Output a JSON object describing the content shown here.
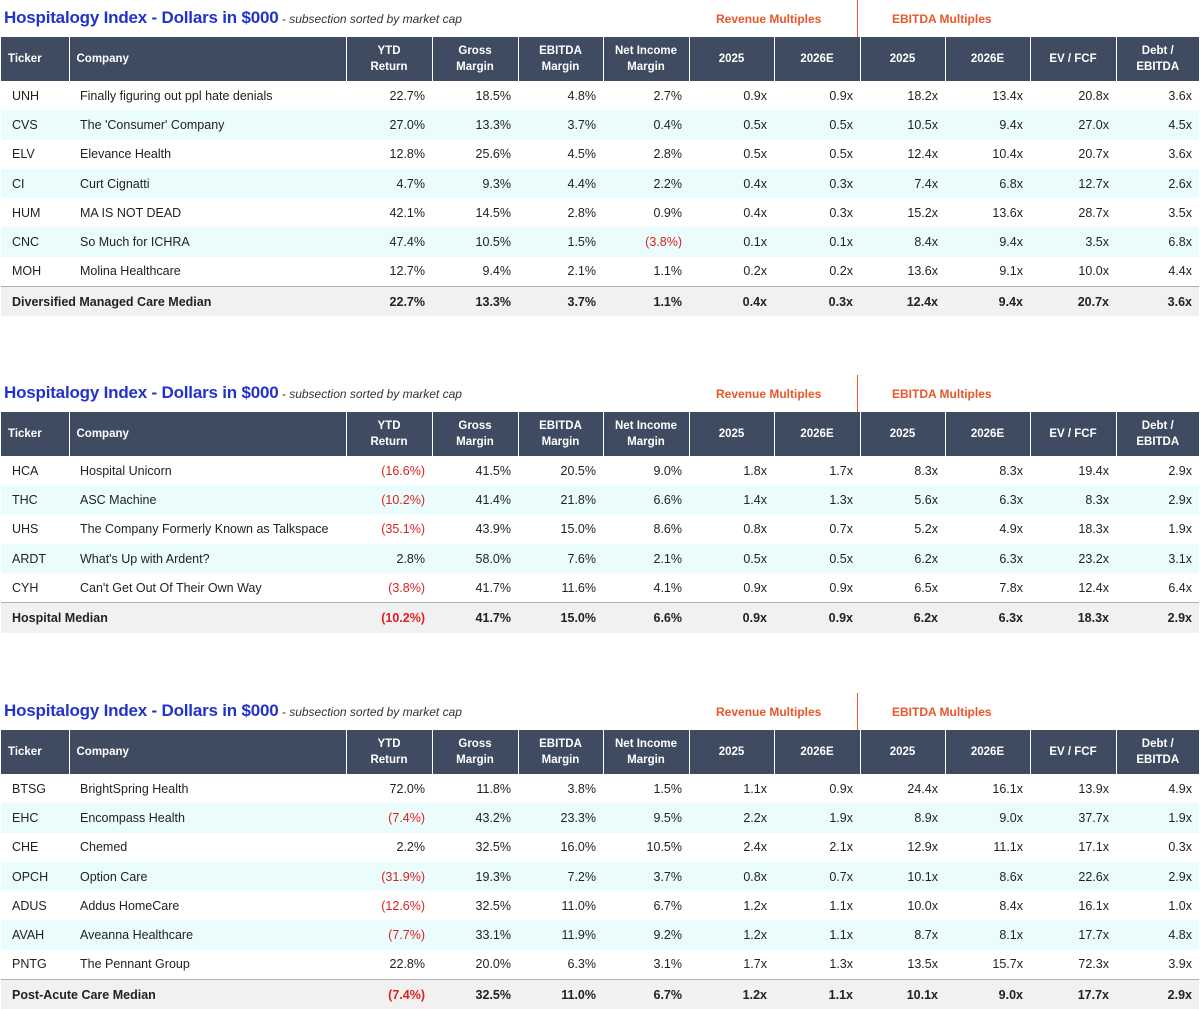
{
  "sections": [
    {
      "title": "Hospitalogy Index - Dollars in $000",
      "subtitle": " - subsection sorted by market cap",
      "revenue_group": "Revenue Multiples",
      "ebitda_group": "EBITDA Multiples",
      "headers": {
        "ticker": "Ticker",
        "company": "Company",
        "ytd_1": "YTD",
        "ytd_2": "Return",
        "gross_1": "Gross",
        "gross_2": "Margin",
        "ebitda_1": "EBITDA",
        "ebitda_2": "Margin",
        "net_1": "Net Income",
        "net_2": "Margin",
        "rev_2025": "2025",
        "rev_2026": "2026E",
        "ebitda_2025": "2025",
        "ebitda_2026": "2026E",
        "ev_fcf": "EV / FCF",
        "debt_ebitda": "Debt / EBITDA"
      },
      "rows": [
        [
          "UNH",
          "Finally figuring out ppl hate denials",
          "22.7%",
          "18.5%",
          "4.8%",
          "2.7%",
          "0.9x",
          "0.9x",
          "18.2x",
          "13.4x",
          "20.8x",
          "3.6x"
        ],
        [
          "CVS",
          "The 'Consumer' Company",
          "27.0%",
          "13.3%",
          "3.7%",
          "0.4%",
          "0.5x",
          "0.5x",
          "10.5x",
          "9.4x",
          "27.0x",
          "4.5x"
        ],
        [
          "ELV",
          "Elevance Health",
          "12.8%",
          "25.6%",
          "4.5%",
          "2.8%",
          "0.5x",
          "0.5x",
          "12.4x",
          "10.4x",
          "20.7x",
          "3.6x"
        ],
        [
          "CI",
          "Curt Cignatti",
          "4.7%",
          "9.3%",
          "4.4%",
          "2.2%",
          "0.4x",
          "0.3x",
          "7.4x",
          "6.8x",
          "12.7x",
          "2.6x"
        ],
        [
          "HUM",
          "MA IS NOT DEAD",
          "42.1%",
          "14.5%",
          "2.8%",
          "0.9%",
          "0.4x",
          "0.3x",
          "15.2x",
          "13.6x",
          "28.7x",
          "3.5x"
        ],
        [
          "CNC",
          "So Much for ICHRA",
          "47.4%",
          "10.5%",
          "1.5%",
          "(3.8%)",
          "0.1x",
          "0.1x",
          "8.4x",
          "9.4x",
          "3.5x",
          "6.8x"
        ],
        [
          "MOH",
          "Molina Healthcare",
          "12.7%",
          "9.4%",
          "2.1%",
          "1.1%",
          "0.2x",
          "0.2x",
          "13.6x",
          "9.1x",
          "10.0x",
          "4.4x"
        ]
      ],
      "median": [
        "Diversified Managed Care Median",
        "22.7%",
        "13.3%",
        "3.7%",
        "1.1%",
        "0.4x",
        "0.3x",
        "12.4x",
        "9.4x",
        "20.7x",
        "3.6x"
      ]
    },
    {
      "title": "Hospitalogy Index - Dollars in $000",
      "subtitle": " - subsection sorted by market cap",
      "revenue_group": "Revenue Multiples",
      "ebitda_group": "EBITDA Multiples",
      "headers": {
        "ticker": "Ticker",
        "company": "Company",
        "ytd_1": "YTD",
        "ytd_2": "Return",
        "gross_1": "Gross",
        "gross_2": "Margin",
        "ebitda_1": "EBITDA",
        "ebitda_2": "Margin",
        "net_1": "Net Income",
        "net_2": "Margin",
        "rev_2025": "2025",
        "rev_2026": "2026E",
        "ebitda_2025": "2025",
        "ebitda_2026": "2026E",
        "ev_fcf": "EV / FCF",
        "debt_ebitda": "Debt / EBITDA"
      },
      "rows": [
        [
          "HCA",
          "Hospital Unicorn",
          "(16.6%)",
          "41.5%",
          "20.5%",
          "9.0%",
          "1.8x",
          "1.7x",
          "8.3x",
          "8.3x",
          "19.4x",
          "2.9x"
        ],
        [
          "THC",
          "ASC Machine",
          "(10.2%)",
          "41.4%",
          "21.8%",
          "6.6%",
          "1.4x",
          "1.3x",
          "5.6x",
          "6.3x",
          "8.3x",
          "2.9x"
        ],
        [
          "UHS",
          "The Company Formerly Known as Talkspace",
          "(35.1%)",
          "43.9%",
          "15.0%",
          "8.6%",
          "0.8x",
          "0.7x",
          "5.2x",
          "4.9x",
          "18.3x",
          "1.9x"
        ],
        [
          "ARDT",
          "What's Up with Ardent?",
          "2.8%",
          "58.0%",
          "7.6%",
          "2.1%",
          "0.5x",
          "0.5x",
          "6.2x",
          "6.3x",
          "23.2x",
          "3.1x"
        ],
        [
          "CYH",
          "Can't Get Out Of Their Own Way",
          "(3.8%)",
          "41.7%",
          "11.6%",
          "4.1%",
          "0.9x",
          "0.9x",
          "6.5x",
          "7.8x",
          "12.4x",
          "6.4x"
        ]
      ],
      "median": [
        "Hospital Median",
        "(10.2%)",
        "41.7%",
        "15.0%",
        "6.6%",
        "0.9x",
        "0.9x",
        "6.2x",
        "6.3x",
        "18.3x",
        "2.9x"
      ]
    },
    {
      "title": "Hospitalogy Index - Dollars in $000",
      "subtitle": " - subsection sorted by market cap",
      "revenue_group": "Revenue Multiples",
      "ebitda_group": "EBITDA Multiples",
      "headers": {
        "ticker": "Ticker",
        "company": "Company",
        "ytd_1": "YTD",
        "ytd_2": "Return",
        "gross_1": "Gross",
        "gross_2": "Margin",
        "ebitda_1": "EBITDA",
        "ebitda_2": "Margin",
        "net_1": "Net Income",
        "net_2": "Margin",
        "rev_2025": "2025",
        "rev_2026": "2026E",
        "ebitda_2025": "2025",
        "ebitda_2026": "2026E",
        "ev_fcf": "EV / FCF",
        "debt_ebitda": "Debt / EBITDA"
      },
      "rows": [
        [
          "BTSG",
          "BrightSpring Health",
          "72.0%",
          "11.8%",
          "3.8%",
          "1.5%",
          "1.1x",
          "0.9x",
          "24.4x",
          "16.1x",
          "13.9x",
          "4.9x"
        ],
        [
          "EHC",
          "Encompass Health",
          "(7.4%)",
          "43.2%",
          "23.3%",
          "9.5%",
          "2.2x",
          "1.9x",
          "8.9x",
          "9.0x",
          "37.7x",
          "1.9x"
        ],
        [
          "CHE",
          "Chemed",
          "2.2%",
          "32.5%",
          "16.0%",
          "10.5%",
          "2.4x",
          "2.1x",
          "12.9x",
          "11.1x",
          "17.1x",
          "0.3x"
        ],
        [
          "OPCH",
          "Option Care",
          "(31.9%)",
          "19.3%",
          "7.2%",
          "3.7%",
          "0.8x",
          "0.7x",
          "10.1x",
          "8.6x",
          "22.6x",
          "2.9x"
        ],
        [
          "ADUS",
          "Addus HomeCare",
          "(12.6%)",
          "32.5%",
          "11.0%",
          "6.7%",
          "1.2x",
          "1.1x",
          "10.0x",
          "8.4x",
          "16.1x",
          "1.0x"
        ],
        [
          "AVAH",
          "Aveanna Healthcare",
          "(7.7%)",
          "33.1%",
          "11.9%",
          "9.2%",
          "1.2x",
          "1.1x",
          "8.7x",
          "8.1x",
          "17.7x",
          "4.8x"
        ],
        [
          "PNTG",
          "The Pennant Group",
          "22.8%",
          "20.0%",
          "6.3%",
          "3.1%",
          "1.7x",
          "1.3x",
          "13.5x",
          "15.7x",
          "72.3x",
          "3.9x"
        ]
      ],
      "median": [
        "Post-Acute Care Median",
        "(7.4%)",
        "32.5%",
        "11.0%",
        "6.7%",
        "1.2x",
        "1.1x",
        "10.1x",
        "9.0x",
        "17.7x",
        "2.9x"
      ]
    }
  ]
}
